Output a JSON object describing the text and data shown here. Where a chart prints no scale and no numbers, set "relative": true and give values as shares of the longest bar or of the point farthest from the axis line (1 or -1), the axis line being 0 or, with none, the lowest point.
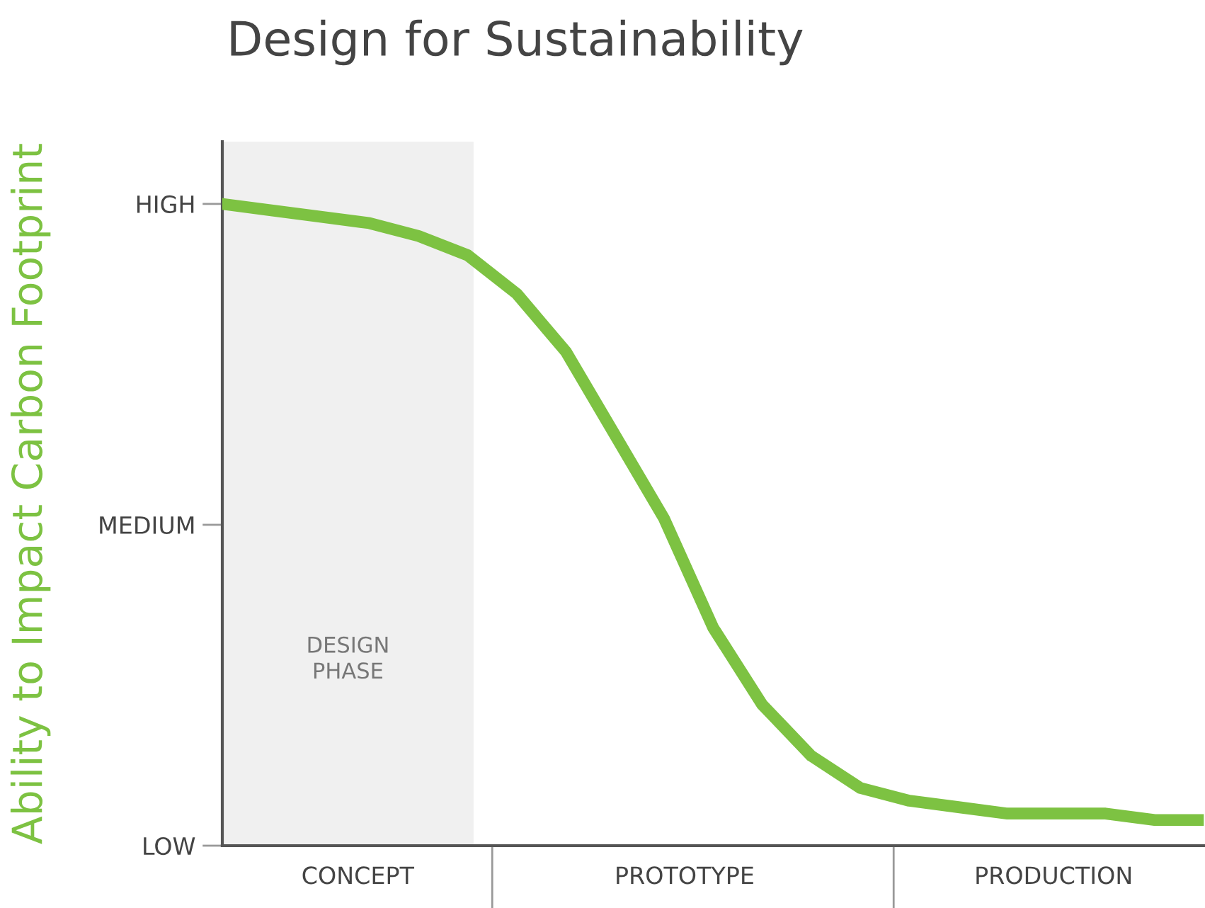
{
  "chart_data": {
    "type": "line",
    "title": "Design for Sustainability",
    "ylabel": "Ability to Impact Carbon Footprint",
    "relative": true,
    "categories": [
      null,
      null,
      null,
      null,
      null,
      null,
      null,
      null,
      null,
      null,
      null,
      null,
      null,
      null,
      null,
      null,
      null,
      null,
      null,
      null,
      null
    ],
    "series": [
      {
        "color": "#7dc242",
        "values": [
          1.0,
          0.99,
          0.98,
          0.97,
          0.95,
          0.92,
          0.86,
          0.77,
          0.64,
          0.51,
          0.34,
          0.22,
          0.14,
          0.09,
          0.07,
          0.06,
          0.05,
          0.05,
          0.05,
          0.04,
          0.04
        ]
      }
    ],
    "annotations": [
      "DESIGN\nPHASE",
      "HIGH",
      "MEDIUM",
      "LOW",
      "CONCEPT",
      "PROTOTYPE",
      "PRODUCTION"
    ],
    "grid": false,
    "marker": "none",
    "line_style": "solid"
  }
}
